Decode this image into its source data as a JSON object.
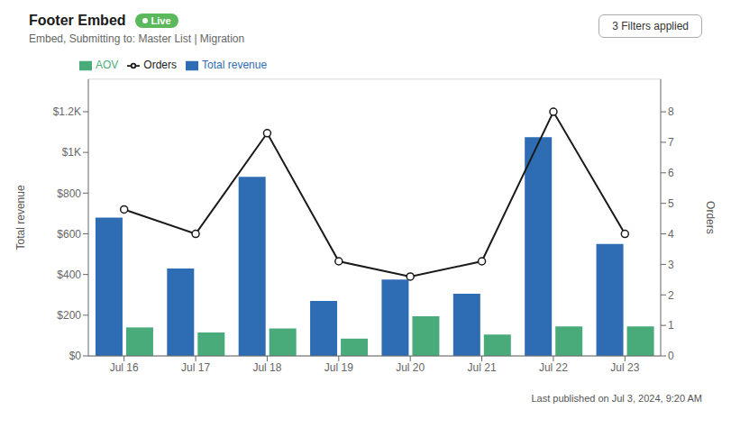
{
  "chart_data": {
    "type": "bar",
    "title": "Footer Embed",
    "subtitle": "Embed, Submitting to: Master List | Migration",
    "annotations": [
      "Live",
      "3 Filters applied",
      "Last published on Jul 3, 2024, 9:20 AM"
    ],
    "categories": [
      "Jul 16",
      "Jul 17",
      "Jul 18",
      "Jul 19",
      "Jul 20",
      "Jul 21",
      "Jul 22",
      "Jul 23"
    ],
    "series": [
      {
        "name": "Total revenue",
        "type": "bar",
        "color": "#2e6db4",
        "values": [
          680,
          430,
          880,
          270,
          375,
          305,
          1075,
          550
        ]
      },
      {
        "name": "AOV",
        "type": "bar",
        "color": "#4aab7a",
        "values": [
          140,
          115,
          135,
          85,
          195,
          105,
          145,
          145
        ]
      },
      {
        "name": "Orders",
        "type": "line",
        "axis": "y2",
        "color": "#1a1a1a",
        "marker": "circle",
        "values": [
          4.8,
          4.0,
          7.3,
          3.1,
          2.6,
          3.1,
          8.0,
          4.0
        ]
      }
    ],
    "ylabel": "Total revenue",
    "y2label": "Orders",
    "ylim": [
      0,
      1360
    ],
    "yticks": [
      {
        "value": 0,
        "label": "$0"
      },
      {
        "value": 200,
        "label": "$200"
      },
      {
        "value": 400,
        "label": "$400"
      },
      {
        "value": 600,
        "label": "$600"
      },
      {
        "value": 800,
        "label": "$800"
      },
      {
        "value": 1000,
        "label": "$1K"
      },
      {
        "value": 1200,
        "label": "$1.2K"
      }
    ],
    "y2lim": [
      0,
      9.07
    ],
    "y2ticks": [
      0,
      1,
      2,
      3,
      4,
      5,
      6,
      7,
      8
    ],
    "grid": true,
    "legend": "upper left"
  }
}
